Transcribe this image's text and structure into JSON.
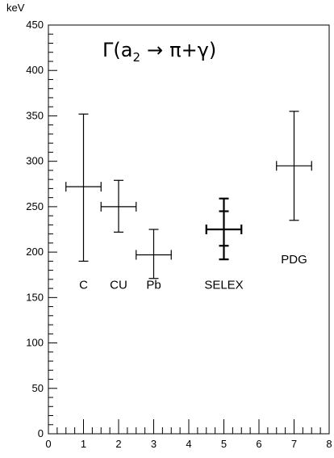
{
  "chart_data": {
    "type": "scatter",
    "title": "Γ(a₂ → π+γ)",
    "title_parts": {
      "gamma": "Γ",
      "open_paren": "(",
      "a": "a",
      "sub": "2",
      "arrow": "→",
      "rest": "π+γ)"
    },
    "ylabel": "keV",
    "xlabel": "",
    "xlim": [
      0,
      8
    ],
    "ylim": [
      0,
      450
    ],
    "x_ticks": [
      "0",
      "1",
      "2",
      "3",
      "4",
      "5",
      "6",
      "7",
      "8"
    ],
    "y_ticks": [
      "0",
      "50",
      "100",
      "150",
      "200",
      "250",
      "300",
      "350",
      "400",
      "450"
    ],
    "grid": false,
    "points": [
      {
        "label": "C",
        "x": 1,
        "y": 272,
        "xerr": 0.5,
        "y_low": 190,
        "y_high": 352,
        "label_y": 165
      },
      {
        "label": "CU",
        "x": 2,
        "y": 250,
        "xerr": 0.5,
        "y_low": 222,
        "y_high": 279,
        "label_y": 165
      },
      {
        "label": "Pb",
        "x": 3,
        "y": 197,
        "xerr": 0.5,
        "y_low": 171,
        "y_high": 225,
        "label_y": 165
      },
      {
        "label": "SELEX",
        "x": 5,
        "y": 225,
        "xerr": 0.5,
        "y_low": 192,
        "y_high": 259,
        "label_y": 165,
        "bold": true,
        "inner_y_low": 207,
        "inner_y_high": 245
      },
      {
        "label": "PDG",
        "x": 7,
        "y": 295,
        "xerr": 0.5,
        "y_low": 235,
        "y_high": 355,
        "label_y": 193
      }
    ],
    "colors": {
      "axis": "#000000",
      "marks": "#000000",
      "background": "#ffffff"
    }
  }
}
